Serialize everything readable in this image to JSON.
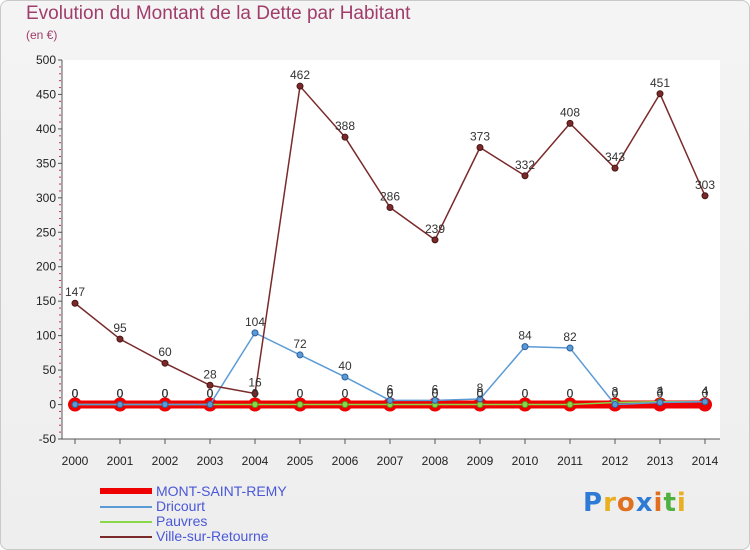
{
  "header": {
    "title": "Evolution du Montant de la Dette par Habitant",
    "unit": "(en €)"
  },
  "logo": {
    "text": "Proxiti",
    "letters": [
      "P",
      "r",
      "o",
      "x",
      "i",
      "t",
      "i"
    ],
    "colors": [
      "#2e7bd6",
      "#e8b020",
      "#e07020",
      "#2e7bd6",
      "#e07020",
      "#50b040",
      "#e8b020"
    ]
  },
  "chart_data": {
    "type": "line",
    "title": "Evolution du Montant de la Dette par Habitant",
    "ylabel": "(en €)",
    "xlabel": "",
    "ylim": [
      -50,
      500
    ],
    "y_ticks": [
      -50,
      0,
      50,
      100,
      150,
      200,
      250,
      300,
      350,
      400,
      450,
      500
    ],
    "x": [
      "2000",
      "2001",
      "2002",
      "2003",
      "2004",
      "2005",
      "2006",
      "2007",
      "2008",
      "2009",
      "2010",
      "2011",
      "2012",
      "2013",
      "2014"
    ],
    "grid": false,
    "legend_position": "bottom-left",
    "series": [
      {
        "name": "MONT-SAINT-REMY",
        "color": "#ee0000",
        "values": [
          0,
          0,
          0,
          0,
          0,
          0,
          0,
          0,
          0,
          0,
          0,
          0,
          0,
          0,
          0
        ]
      },
      {
        "name": "Dricourt",
        "color": "#5b9bd5",
        "values": [
          0,
          0,
          0,
          0,
          104,
          72,
          40,
          6,
          6,
          8,
          84,
          82,
          0,
          3,
          4
        ]
      },
      {
        "name": "Pauvres",
        "color": "#8ad84a",
        "values": [
          0,
          0,
          0,
          0,
          0,
          0,
          0,
          0,
          0,
          0,
          0,
          0,
          3,
          4,
          4
        ]
      },
      {
        "name": "Ville-sur-Retourne",
        "color": "#7a2a2a",
        "values": [
          147,
          95,
          60,
          28,
          16,
          462,
          388,
          286,
          239,
          373,
          332,
          408,
          343,
          451,
          303
        ]
      }
    ]
  }
}
